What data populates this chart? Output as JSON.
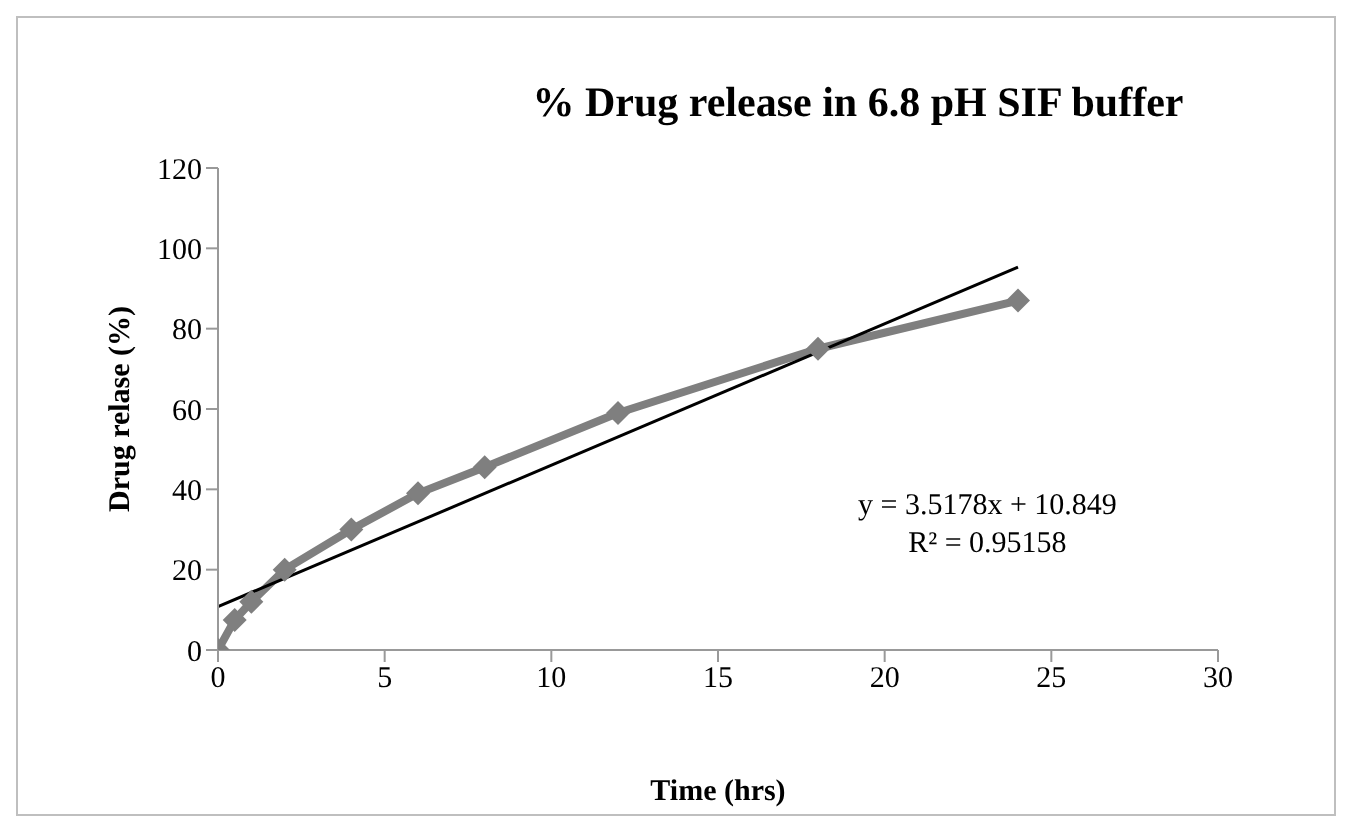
{
  "chart_data": {
    "type": "line",
    "title": "% Drug release in 6.8 pH SIF buffer",
    "xlabel": "Time (hrs)",
    "ylabel": "Drug relase (%)",
    "x": [
      0,
      0.5,
      1,
      2,
      4,
      6,
      8,
      12,
      18,
      24
    ],
    "series": [
      {
        "color": "#7f7f7f",
        "values": [
          0,
          7.5,
          12,
          20,
          30,
          39,
          45.5,
          59,
          75,
          87
        ],
        "marker": "diamond"
      },
      {
        "type": "line",
        "color": "#000000",
        "x": [
          0,
          24
        ],
        "values": [
          10.8,
          95.3
        ],
        "marker": "none"
      }
    ],
    "annotations": [
      "y = 3.5178x + 10.849",
      "R² = 0.95158"
    ],
    "xlim": [
      0,
      30
    ],
    "xticks": [
      0,
      5,
      10,
      15,
      20,
      25,
      30
    ],
    "ylim": [
      0,
      120
    ],
    "yticks": [
      0,
      20,
      40,
      60,
      80,
      100,
      120
    ],
    "grid": false,
    "line_style": "solid"
  }
}
